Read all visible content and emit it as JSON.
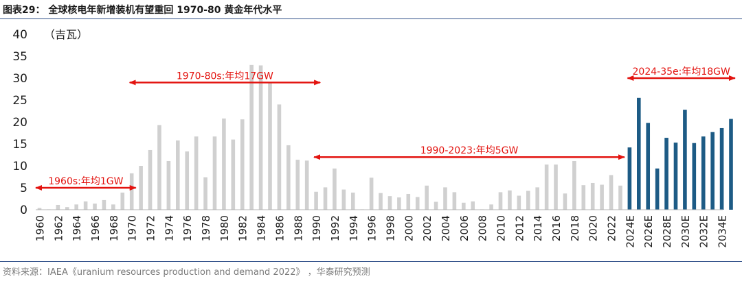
{
  "title": "图表29：  全球核电年新增装机有望重回 1970-80 黄金年代水平",
  "source": "资料来源：IAEA《uranium resources production and demand 2022》 ，华泰研究预测",
  "chart_data": {
    "type": "bar",
    "ylabel": "（吉瓦）",
    "ylim": [
      0,
      40
    ],
    "yticks": [
      0,
      5,
      10,
      15,
      20,
      25,
      30,
      35,
      40
    ],
    "grid": false,
    "categories": [
      "1960",
      "1961",
      "1962",
      "1963",
      "1964",
      "1965",
      "1966",
      "1967",
      "1968",
      "1969",
      "1970",
      "1971",
      "1972",
      "1973",
      "1974",
      "1975",
      "1976",
      "1977",
      "1978",
      "1979",
      "1980",
      "1981",
      "1982",
      "1983",
      "1984",
      "1985",
      "1986",
      "1987",
      "1988",
      "1989",
      "1990",
      "1991",
      "1992",
      "1993",
      "1994",
      "1995",
      "1996",
      "1997",
      "1998",
      "1999",
      "2000",
      "2001",
      "2002",
      "2003",
      "2004",
      "2005",
      "2006",
      "2007",
      "2008",
      "2009",
      "2010",
      "2011",
      "2012",
      "2013",
      "2014",
      "2015",
      "2016",
      "2017",
      "2018",
      "2019",
      "2020",
      "2021",
      "2022",
      "2023",
      "2024E",
      "2025E",
      "2026E",
      "2027E",
      "2028E",
      "2029E",
      "2030E",
      "2031E",
      "2032E",
      "2033E",
      "2034E",
      "2035E"
    ],
    "tick_labels": [
      "1960",
      "1962",
      "1964",
      "1966",
      "1968",
      "1970",
      "1972",
      "1974",
      "1976",
      "1978",
      "1980",
      "1982",
      "1984",
      "1986",
      "1988",
      "1990",
      "1992",
      "1994",
      "1996",
      "1998",
      "2000",
      "2002",
      "2004",
      "2006",
      "2008",
      "2010",
      "2012",
      "2014",
      "2016",
      "2018",
      "2020",
      "2022",
      "2024E",
      "2026E",
      "2028E",
      "2030E",
      "2032E",
      "2034E"
    ],
    "values": [
      0.4,
      0.1,
      1.1,
      0.6,
      1.2,
      1.9,
      1.4,
      2.2,
      1.2,
      3.9,
      8.3,
      10.0,
      13.6,
      19.3,
      11.1,
      15.8,
      13.3,
      16.7,
      7.4,
      16.7,
      20.8,
      16.0,
      20.6,
      33.0,
      32.9,
      29.0,
      24.0,
      14.7,
      11.4,
      11.2,
      4.1,
      5.1,
      9.4,
      4.6,
      3.9,
      0.1,
      7.3,
      3.8,
      3.1,
      2.8,
      3.6,
      2.9,
      5.5,
      1.8,
      5.1,
      4.0,
      1.6,
      1.9,
      0.1,
      1.2,
      4.0,
      4.4,
      3.2,
      4.3,
      5.1,
      10.3,
      10.3,
      3.7,
      11.1,
      5.6,
      6.1,
      5.7,
      7.9,
      5.5,
      14.2,
      25.5,
      19.8,
      9.4,
      16.4,
      15.3,
      22.8,
      15.2,
      16.7,
      17.7,
      18.6,
      20.7
    ],
    "colors": {
      "historical": "#d0d0d0",
      "forecast": "#1d5b85",
      "annotation": "#e3130f"
    },
    "annotations": [
      {
        "label": "1960s:年均1GW",
        "from": "1960",
        "to": "1970",
        "y": 5
      },
      {
        "label": "1970-80s:年均17GW",
        "from": "1970",
        "to": "1990",
        "y": 29
      },
      {
        "label": "1990-2023:年均5GW",
        "from": "1990",
        "to": "2023",
        "y": 12
      },
      {
        "label": "2024-35e:年均18GW",
        "from": "2024E",
        "to": "2035E",
        "y": 30
      }
    ]
  }
}
